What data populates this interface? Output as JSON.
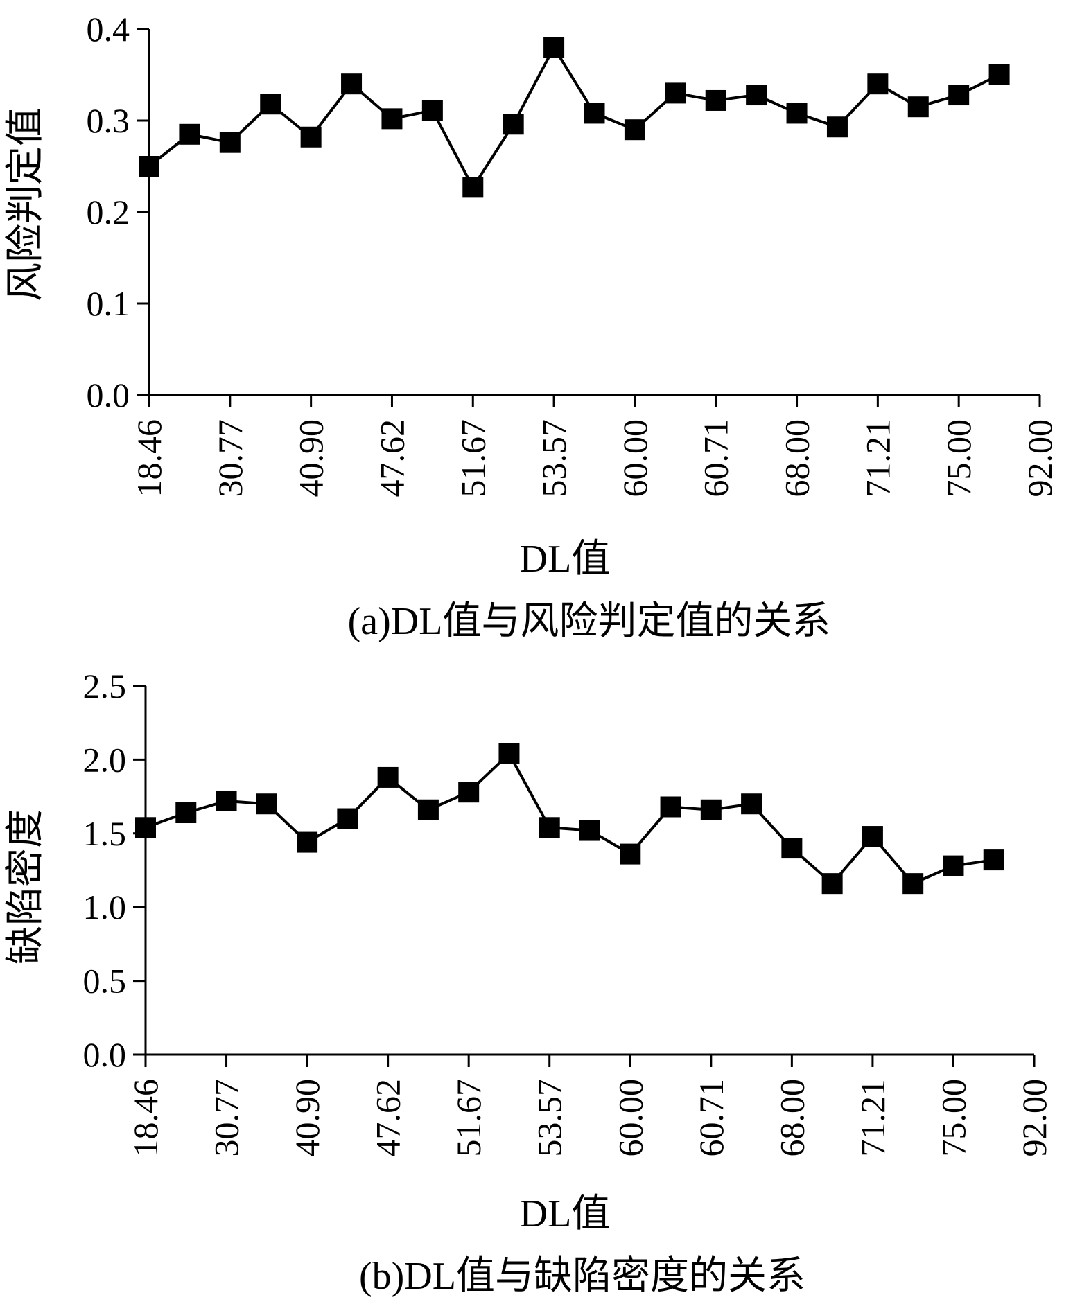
{
  "chart_data": [
    {
      "type": "line",
      "marker": "square",
      "caption": "(a)DL值与风险判定值的关系",
      "xlabel": "DL值",
      "ylabel": "风险判定值",
      "x_tick_labels": [
        "18.46",
        "30.77",
        "40.90",
        "47.62",
        "51.67",
        "53.57",
        "60.00",
        "60.71",
        "68.00",
        "71.21",
        "75.00",
        "92.00"
      ],
      "y_tick_labels": [
        "0.0",
        "0.1",
        "0.2",
        "0.3",
        "0.4"
      ],
      "ylim": [
        0,
        0.4
      ],
      "grid": false,
      "values": [
        0.25,
        0.285,
        0.276,
        0.318,
        0.282,
        0.34,
        0.302,
        0.311,
        0.227,
        0.296,
        0.38,
        0.308,
        0.29,
        0.33,
        0.322,
        0.328,
        0.308,
        0.293,
        0.34,
        0.315,
        0.328,
        0.35
      ]
    },
    {
      "type": "line",
      "marker": "square",
      "caption": "(b)DL值与缺陷密度的关系",
      "xlabel": "DL值",
      "ylabel": "缺陷密度",
      "x_tick_labels": [
        "18.46",
        "30.77",
        "40.90",
        "47.62",
        "51.67",
        "53.57",
        "60.00",
        "60.71",
        "68.00",
        "71.21",
        "75.00",
        "92.00"
      ],
      "y_tick_labels": [
        "0.0",
        "0.5",
        "1.0",
        "1.5",
        "2.0",
        "2.5"
      ],
      "ylim": [
        0,
        2.5
      ],
      "grid": false,
      "values": [
        1.54,
        1.64,
        1.72,
        1.7,
        1.44,
        1.6,
        1.88,
        1.66,
        1.78,
        2.04,
        1.54,
        1.52,
        1.36,
        1.68,
        1.66,
        1.7,
        1.4,
        1.16,
        1.48,
        1.16,
        1.28,
        1.32
      ]
    }
  ]
}
